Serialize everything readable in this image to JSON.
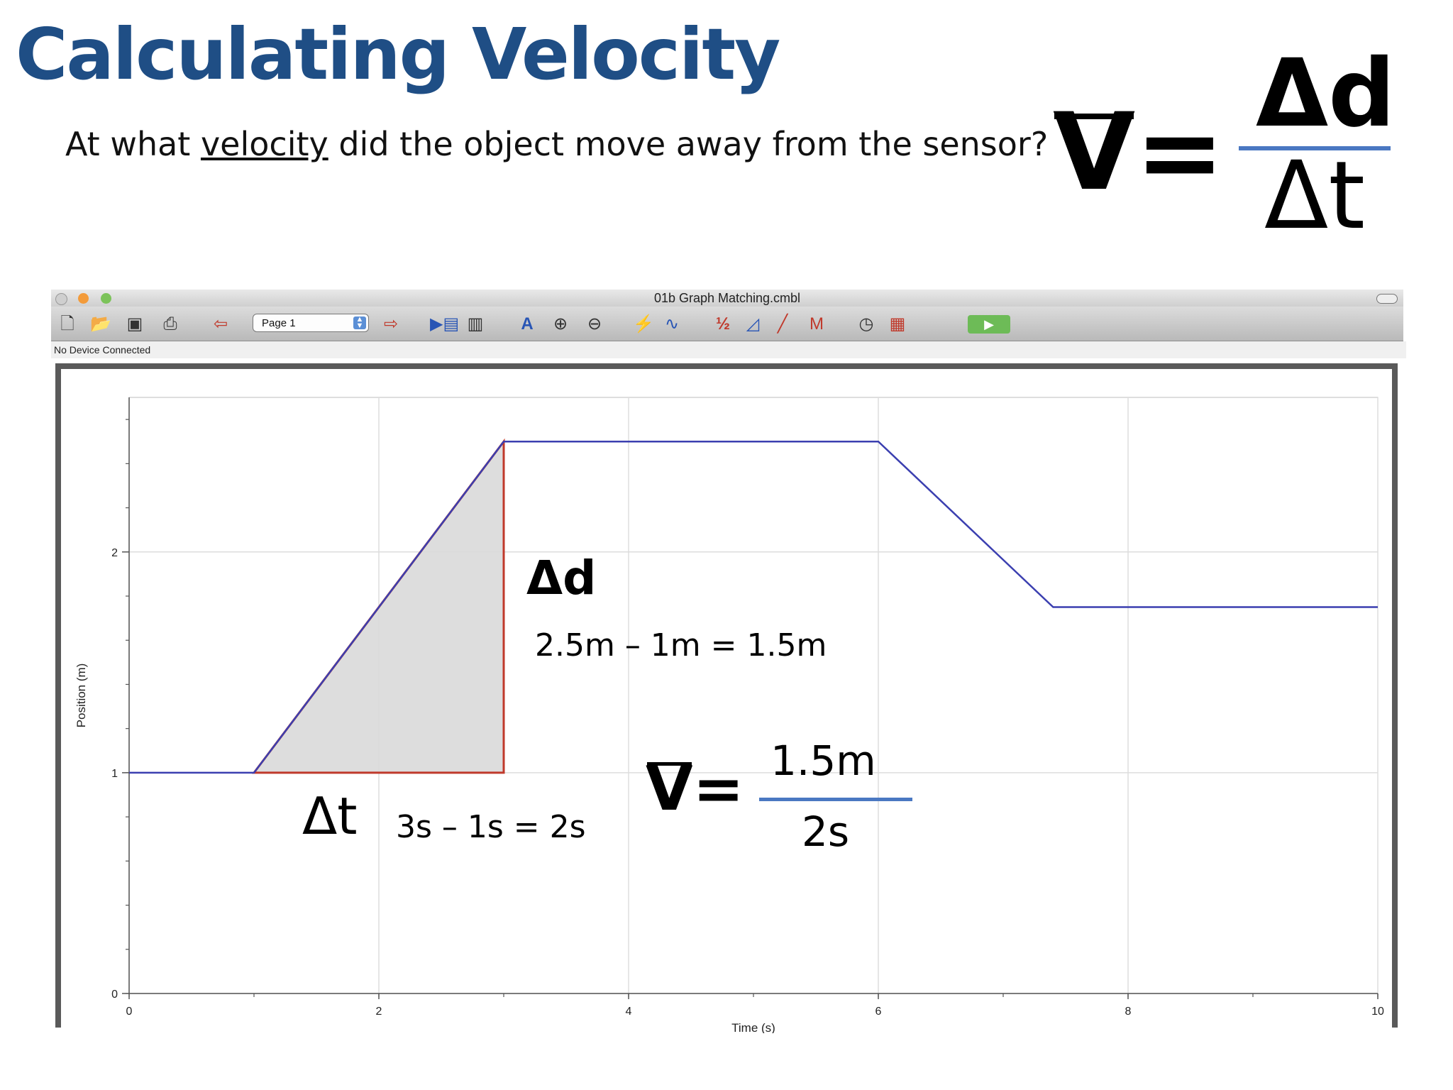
{
  "slide": {
    "title": "Calculating Velocity",
    "question_pre": "At what ",
    "question_keyword": "velocity",
    "question_post": " did the object move away from the sensor?"
  },
  "formula": {
    "lhs": "V",
    "equals": "=",
    "numerator": "Δd",
    "denominator": "Δt"
  },
  "window": {
    "title": "01b Graph Matching.cmbl",
    "page_select": "Page 1",
    "status": "No Device Connected"
  },
  "toolbar": {
    "icons": [
      "new-file-icon",
      "open-folder-icon",
      "save-icon",
      "print-icon",
      "back-page-icon",
      "page-select",
      "forward-page-icon",
      "data-browser-icon",
      "calculator-icon",
      "autoscale-icon",
      "zoom-in-icon",
      "zoom-out-icon",
      "examine-icon",
      "tangent-icon",
      "integral-icon",
      "stats-icon",
      "curve-fit-icon",
      "linear-fit-icon",
      "timer-icon",
      "strip-chart-icon",
      "collect-button"
    ]
  },
  "annotations": {
    "delta_d": "Δd",
    "delta_d_calc": "2.5m – 1m = 1.5m",
    "delta_t": "Δt",
    "delta_t_calc": "3s – 1s = 2s",
    "v_lhs": "V",
    "v_equals": "=",
    "v_numerator": "1.5m",
    "v_denominator": "2s"
  },
  "chart_data": {
    "type": "line",
    "xlabel": "Time (s)",
    "ylabel": "Position (m)",
    "xlim": [
      0,
      10
    ],
    "ylim": [
      0,
      2.7
    ],
    "x_ticks": [
      0,
      2,
      4,
      6,
      8,
      10
    ],
    "y_ticks": [
      0,
      1,
      2
    ],
    "grid": true,
    "series": [
      {
        "x": [
          0,
          1,
          3,
          6,
          7.4,
          10
        ],
        "y": [
          1,
          1,
          2.5,
          2.5,
          1.75,
          1.75
        ],
        "color": "#3b3fb0"
      }
    ],
    "highlight_triangle": {
      "points": [
        [
          1,
          1
        ],
        [
          3,
          2.5
        ],
        [
          3,
          1
        ]
      ],
      "fill": "#d9d9d9",
      "stroke": "#c0392b"
    }
  }
}
